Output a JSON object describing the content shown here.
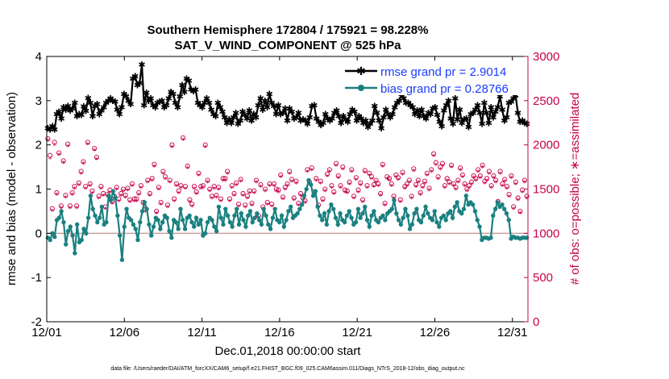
{
  "chart_data": {
    "type": "line",
    "title": "Southern Hemisphere 172804 / 175921 = 98.228%",
    "subtitle": "SAT_V_WIND_COMPONENT @ 525 hPa",
    "xlabel": "Dec.01,2018 00:00:00 start",
    "ylabel_left": "rmse and bias (model - observation)",
    "ylabel_right": "# of obs: o=possible; ∗=assimilated",
    "footnote": "data file: /Users/raeder/DAI/ATM_forcXX/CAM6_setup/f.e21.FHIST_BGC.f09_025.CAM6assim.011/Diags_NTrS_2018-12/obs_diag_output.nc",
    "xlim": [
      0,
      31
    ],
    "ylim_left": [
      -2,
      4
    ],
    "ylim_right": [
      0,
      3000
    ],
    "x_tick_positions": [
      0,
      5,
      10,
      15,
      20,
      25,
      30
    ],
    "x_tick_labels": [
      "12/01",
      "12/06",
      "12/11",
      "12/16",
      "12/21",
      "12/26",
      "12/31"
    ],
    "y_ticks_left": [
      "-2",
      "-1",
      "0",
      "1",
      "2",
      "3",
      "4"
    ],
    "y_ticks_right": [
      "0",
      "500",
      "1000",
      "1500",
      "2000",
      "2500",
      "3000"
    ],
    "legend": {
      "placement": "top-right",
      "entries": [
        {
          "name": "rmse grand pr = 2.9014",
          "color": "#000000"
        },
        {
          "name": "bias grand pr = 0.28766",
          "color": "#1a8080"
        }
      ]
    },
    "colors": {
      "rmse": "#000000",
      "bias": "#1a8080",
      "obs": "#c8004a",
      "zero_line": "#c8a0a0",
      "axis_right": "#c8004a"
    },
    "series": [
      {
        "name": "rmse",
        "axis": "left",
        "values": [
          2.38,
          2.35,
          2.42,
          2.35,
          2.7,
          2.75,
          2.6,
          2.85,
          2.8,
          2.88,
          2.78,
          2.82,
          2.95,
          2.65,
          2.7,
          2.68,
          2.87,
          2.77,
          3.06,
          2.95,
          2.65,
          2.88,
          2.92,
          2.7,
          2.78,
          2.85,
          2.95,
          3.0,
          3.05,
          3.0,
          2.98,
          2.8,
          2.7,
          2.85,
          3.15,
          3.1,
          3.0,
          2.92,
          3.5,
          3.55,
          3.35,
          3.4,
          3.82,
          2.9,
          3.18,
          3.0,
          3.05,
          2.9,
          2.85,
          2.95,
          2.98,
          3.0,
          2.85,
          2.9,
          3.05,
          3.2,
          3.15,
          2.95,
          2.85,
          3.1,
          3.35,
          3.2,
          3.5,
          3.45,
          3.25,
          3.22,
          3.25,
          2.95,
          2.9,
          2.85,
          2.95,
          3.05,
          2.95,
          2.8,
          2.7,
          2.65,
          2.95,
          2.85,
          2.75,
          2.62,
          2.5,
          2.58,
          2.5,
          2.62,
          2.72,
          2.48,
          2.55,
          2.75,
          2.68,
          2.6,
          2.78,
          2.55,
          2.7,
          2.62,
          2.9,
          3.05,
          2.8,
          3.0,
          2.85,
          3.15,
          2.95,
          2.88,
          2.7,
          2.9,
          2.7,
          2.72,
          2.82,
          2.55,
          2.82,
          2.75,
          2.6,
          2.62,
          2.72,
          2.55,
          2.58,
          2.55,
          2.48,
          2.62,
          2.88,
          2.9,
          2.6,
          2.52,
          2.45,
          2.5,
          2.7,
          2.6,
          2.55,
          2.6,
          2.72,
          2.78,
          2.65,
          2.5,
          2.65,
          2.58,
          2.52,
          2.7,
          2.8,
          2.75,
          2.55,
          2.65,
          2.6,
          2.5,
          2.55,
          2.4,
          2.48,
          2.55,
          2.88,
          2.72,
          2.55,
          2.38,
          2.62,
          2.8,
          2.7,
          2.62,
          2.7,
          2.85,
          2.95,
          3.0,
          3.15,
          3.05,
          2.95,
          2.95,
          2.9,
          2.85,
          2.7,
          2.78,
          2.65,
          2.8,
          2.65,
          2.6,
          2.72,
          2.7,
          2.82,
          2.85,
          2.68,
          2.52,
          2.42,
          2.78,
          2.9,
          3.0,
          2.6,
          2.48,
          3.05,
          2.58,
          2.8,
          2.5,
          2.58,
          2.6,
          2.4,
          2.7,
          2.72,
          2.8,
          2.9,
          2.72,
          2.48,
          2.95,
          2.72,
          2.5,
          2.85,
          2.62,
          2.75,
          2.85,
          3.1,
          2.8,
          2.55,
          2.62,
          2.95,
          2.98,
          3.05,
          3.12,
          2.72,
          2.52,
          2.55,
          2.5,
          2.48
        ]
      },
      {
        "name": "bias",
        "axis": "left",
        "values": [
          -0.1,
          -0.15,
          0.0,
          -0.08,
          0.3,
          0.35,
          0.5,
          0.25,
          -0.25,
          0.05,
          0.15,
          -0.05,
          -0.45,
          0.2,
          -0.2,
          -0.15,
          0.1,
          0.0,
          0.35,
          0.85,
          0.55,
          0.4,
          0.25,
          0.35,
          0.6,
          0.2,
          0.25,
          0.85,
          0.75,
          0.95,
          0.8,
          0.4,
          -0.05,
          -0.6,
          0.15,
          0.55,
          0.35,
          0.3,
          0.2,
          0.1,
          -0.15,
          0.25,
          0.5,
          0.7,
          0.55,
          0.2,
          -0.05,
          0.15,
          0.35,
          0.3,
          0.1,
          0.25,
          0.4,
          0.35,
          0.05,
          -0.1,
          0.3,
          0.25,
          0.1,
          0.55,
          0.3,
          0.1,
          0.35,
          0.4,
          0.25,
          0.15,
          0.35,
          0.2,
          0.3,
          -0.05,
          0.0,
          0.25,
          0.35,
          0.3,
          0.15,
          0.05,
          0.6,
          0.35,
          0.2,
          0.55,
          0.4,
          0.25,
          0.15,
          0.4,
          0.55,
          0.2,
          0.45,
          0.3,
          0.15,
          0.4,
          0.5,
          0.25,
          0.35,
          0.45,
          0.3,
          0.2,
          0.55,
          0.4,
          0.2,
          0.1,
          0.35,
          0.55,
          0.3,
          0.25,
          0.4,
          0.15,
          0.3,
          0.5,
          0.6,
          0.35,
          0.4,
          0.45,
          0.55,
          0.65,
          0.85,
          1.0,
          1.2,
          1.1,
          0.85,
          0.95,
          0.6,
          0.4,
          0.3,
          0.45,
          0.2,
          0.5,
          0.65,
          0.55,
          0.35,
          0.2,
          0.45,
          0.3,
          0.25,
          0.4,
          0.5,
          0.35,
          0.2,
          0.25,
          0.55,
          0.35,
          0.45,
          0.6,
          0.3,
          0.15,
          0.4,
          0.5,
          0.3,
          0.25,
          0.35,
          0.4,
          0.3,
          0.45,
          0.5,
          0.55,
          0.75,
          0.45,
          0.3,
          0.2,
          0.35,
          0.55,
          0.4,
          0.1,
          0.2,
          0.45,
          0.55,
          0.3,
          0.25,
          0.4,
          0.6,
          0.45,
          0.35,
          0.3,
          0.5,
          0.25,
          0.15,
          0.35,
          0.4,
          0.3,
          0.45,
          0.5,
          0.35,
          0.6,
          0.7,
          0.5,
          0.45,
          0.55,
          0.85,
          0.65,
          0.7,
          0.65,
          0.5,
          0.3,
          0.15,
          -0.15,
          -0.1,
          -0.1,
          -0.12,
          -0.1,
          0.4,
          0.55,
          0.7,
          0.6,
          0.65,
          0.55,
          0.45,
          0.3,
          -0.12,
          -0.08,
          -0.1,
          -0.1,
          -0.12,
          -0.1,
          -0.1,
          -0.1
        ]
      },
      {
        "name": "possible",
        "axis": "right",
        "marker": "o",
        "values": [
          2070,
          1880,
          1280,
          2030,
          1460,
          1910,
          1310,
          1820,
          1430,
          2010,
          1310,
          1460,
          1530,
          1310,
          1570,
          1700,
          1810,
          1530,
          2030,
          1560,
          1480,
          1960,
          1860,
          1420,
          1530,
          1450,
          1300,
          1440,
          1490,
          1360,
          1420,
          1520,
          1390,
          1450,
          1500,
          1430,
          1510,
          1380,
          1560,
          1390,
          1390,
          1460,
          1540,
          1350,
          1270,
          1600,
          1450,
          1620,
          1780,
          1250,
          1520,
          1350,
          1700,
          1640,
          1320,
          1600,
          2000,
          1390,
          1560,
          1480,
          1540,
          2080,
          1530,
          1760,
          1380,
          1330,
          1530,
          1470,
          1680,
          1530,
          1540,
          2000,
          1600,
          1500,
          1420,
          1530,
          1430,
          1520,
          1390,
          1620,
          1620,
          1700,
          1390,
          1540,
          1450,
          1570,
          1330,
          1610,
          1450,
          1320,
          1420,
          1480,
          1340,
          1480,
          1600,
          1200,
          1550,
          1300,
          1500,
          1350,
          1560,
          1330,
          1560,
          1500,
          1490,
          1660,
          1410,
          1520,
          1560,
          1700,
          1610,
          1400,
          1590,
          1340,
          1450,
          1400,
          1370,
          1720,
          1580,
          1740,
          1470,
          1620,
          1320,
          1590,
          1390,
          1500,
          1670,
          1720,
          1540,
          1470,
          1790,
          1650,
          1540,
          1750,
          1490,
          1480,
          1580,
          1720,
          1420,
          1630,
          1490,
          1570,
          1380,
          1710,
          1540,
          1680,
          1640,
          1550,
          1600,
          1560,
          1450,
          1780,
          1340,
          1640,
          1620,
          1560,
          1420,
          1660,
          1630,
          1380,
          1690,
          1530,
          1560,
          1600,
          1420,
          1730,
          1550,
          1600,
          1460,
          1540,
          1590,
          1680,
          1510,
          1720,
          1900,
          1800,
          1640,
          1750,
          1790,
          1540,
          1620,
          1580,
          1770,
          1560,
          1520,
          1600,
          1740,
          1660,
          1560,
          1500,
          1540,
          1580,
          1650,
          1620,
          1720,
          1650,
          1770,
          1590,
          1620,
          1700,
          1540,
          1650,
          1600,
          1360,
          1700,
          1560,
          1610,
          1530,
          1440,
          1650,
          1300,
          1580,
          1400,
          1250,
          1490,
          1600,
          1420
        ]
      },
      {
        "name": "assimilated",
        "axis": "right",
        "marker": "*",
        "values": [
          2050,
          1850,
          1260,
          2000,
          1440,
          1890,
          1290,
          1800,
          1410,
          1990,
          1290,
          1440,
          1510,
          1290,
          1550,
          1680,
          1790,
          1510,
          2010,
          1540,
          1460,
          1940,
          1840,
          1400,
          1510,
          1430,
          1280,
          1420,
          1470,
          1340,
          1400,
          1500,
          1370,
          1430,
          1480,
          1410,
          1490,
          1360,
          1540,
          1370,
          1370,
          1440,
          1520,
          1330,
          1250,
          1580,
          1430,
          1600,
          1760,
          1230,
          1500,
          1330,
          1680,
          1620,
          1300,
          1580,
          1980,
          1370,
          1540,
          1460,
          1520,
          2060,
          1510,
          1740,
          1360,
          1310,
          1510,
          1450,
          1660,
          1510,
          1520,
          1980,
          1580,
          1480,
          1400,
          1510,
          1410,
          1500,
          1370,
          1600,
          1600,
          1680,
          1370,
          1520,
          1430,
          1550,
          1310,
          1590,
          1430,
          1300,
          1400,
          1460,
          1320,
          1460,
          1580,
          1180,
          1530,
          1280,
          1480,
          1330,
          1540,
          1310,
          1540,
          1480,
          1470,
          1640,
          1390,
          1500,
          1540,
          1680,
          1590,
          1380,
          1570,
          1320,
          1430,
          1380,
          1350,
          1700,
          1560,
          1720,
          1450,
          1600,
          1300,
          1570,
          1370,
          1480,
          1650,
          1700,
          1520,
          1450,
          1770,
          1630,
          1520,
          1730,
          1470,
          1460,
          1560,
          1700,
          1400,
          1610,
          1470,
          1550,
          1360,
          1690,
          1520,
          1660,
          1620,
          1530,
          1580,
          1540,
          1430,
          1760,
          1320,
          1620,
          1600,
          1540,
          1400,
          1640,
          1610,
          1360,
          1670,
          1510,
          1540,
          1580,
          1400,
          1710,
          1530,
          1580,
          1440,
          1520,
          1570,
          1660,
          1490,
          1700,
          1880,
          1780,
          1620,
          1730,
          1770,
          1520,
          1600,
          1560,
          1750,
          1540,
          1500,
          1580,
          1720,
          1640,
          1540,
          1480,
          1520,
          1560,
          1630,
          1600,
          1700,
          1630,
          1750,
          1570,
          1600,
          1680,
          1520,
          1630,
          1580,
          1340,
          1680,
          1540,
          1590,
          1510,
          1420,
          1630,
          1280,
          1560,
          1380,
          1230,
          1470,
          1580,
          1400
        ]
      }
    ]
  }
}
